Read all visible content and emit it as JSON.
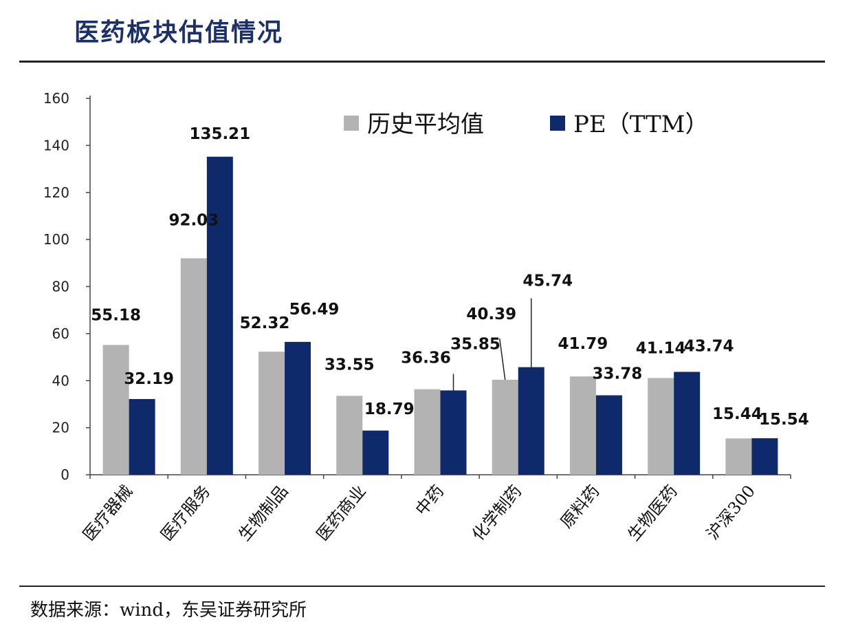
{
  "title": "医药板块估值情况",
  "source": "数据来源：wind，东吴证券研究所",
  "chart_data": {
    "type": "bar",
    "categories": [
      "医疗器械",
      "医疗服务",
      "生物制品",
      "医药商业",
      "中药",
      "化学制药",
      "原料药",
      "生物医药",
      "沪深300"
    ],
    "series": [
      {
        "name": "历史平均值",
        "color": "#b3b3b3",
        "values": [
          55.18,
          92.03,
          52.32,
          33.55,
          36.36,
          40.39,
          41.79,
          41.14,
          15.44
        ]
      },
      {
        "name": "PE（TTM）",
        "color": "#0f2a6b",
        "values": [
          32.19,
          135.21,
          56.49,
          18.79,
          35.85,
          45.74,
          33.78,
          43.74,
          15.54
        ]
      }
    ],
    "ylim": [
      0,
      160
    ],
    "yticks": [
      0,
      20,
      40,
      60,
      80,
      100,
      120,
      140,
      160
    ],
    "xlabel": "",
    "ylabel": "",
    "grid": false,
    "legend": "top-right"
  }
}
